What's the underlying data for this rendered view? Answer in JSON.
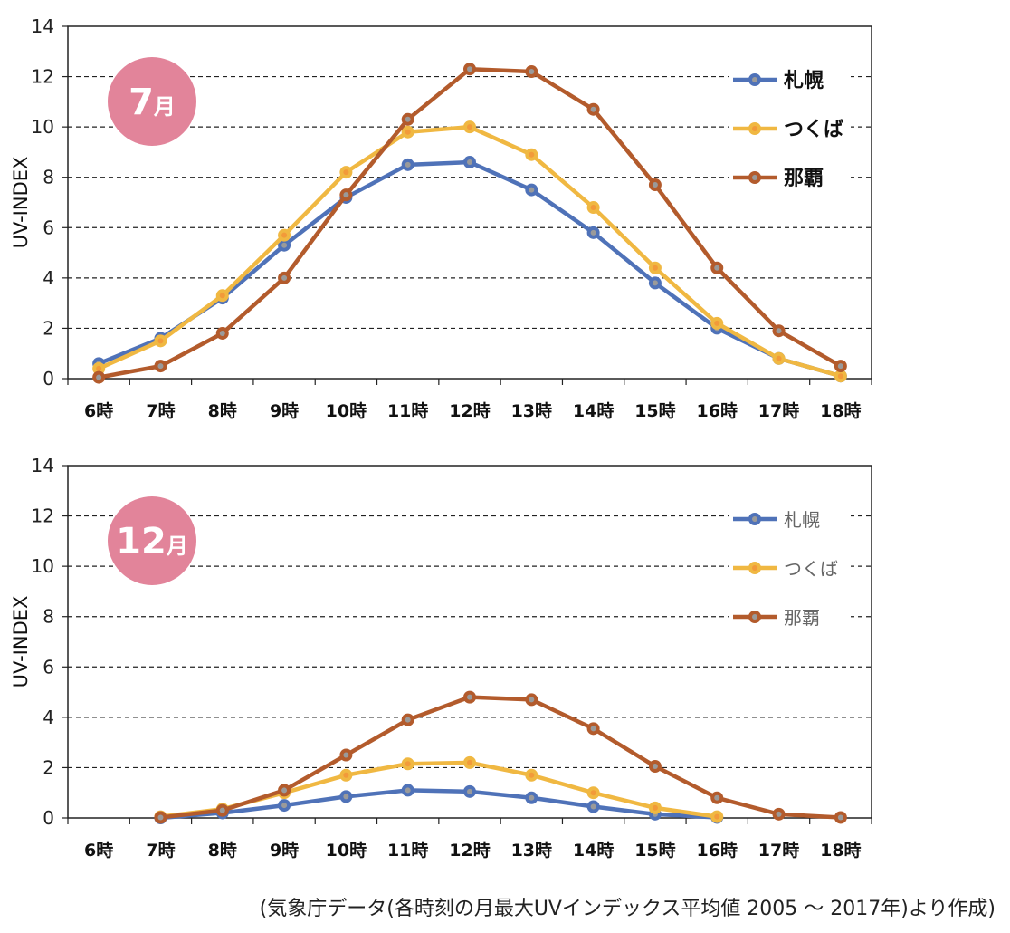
{
  "footer": {
    "source": "(気象庁データ(各時刻の月最大UVインデックス平均値 2005 ～ 2017年)より作成)"
  },
  "colors": {
    "sapporo": "#4f72b8",
    "tsukuba": "#f0b842",
    "naha": "#b35b2c",
    "badge": "#e2849a",
    "marker_center": "#9a9a9a",
    "marker_center_tsukuba": "#f29a3a"
  },
  "chart_data": [
    {
      "type": "line",
      "badge": {
        "number": "7",
        "unit": "月"
      },
      "x": [
        "6時",
        "7時",
        "8時",
        "9時",
        "10時",
        "11時",
        "12時",
        "13時",
        "14時",
        "15時",
        "16時",
        "17時",
        "18時"
      ],
      "ylabel": "UV-INDEX",
      "ylim": [
        0,
        14
      ],
      "yticks": [
        "0",
        "2",
        "4",
        "6",
        "8",
        "10",
        "12",
        "14"
      ],
      "grid": "dashed horizontal",
      "legend_position": "top-right",
      "series": [
        {
          "name": "札幌",
          "values": [
            0.6,
            1.6,
            3.2,
            5.3,
            7.2,
            8.5,
            8.6,
            7.5,
            5.8,
            3.8,
            2.0,
            0.8,
            0.1
          ]
        },
        {
          "name": "つくば",
          "values": [
            0.4,
            1.5,
            3.3,
            5.7,
            8.2,
            9.8,
            10.0,
            8.9,
            6.8,
            4.4,
            2.2,
            0.8,
            0.1
          ]
        },
        {
          "name": "那覇",
          "values": [
            0.05,
            0.5,
            1.8,
            4.0,
            7.3,
            10.3,
            12.3,
            12.2,
            10.7,
            7.7,
            4.4,
            1.9,
            0.5
          ]
        }
      ]
    },
    {
      "type": "line",
      "badge": {
        "number": "12",
        "unit": "月"
      },
      "x": [
        "6時",
        "7時",
        "8時",
        "9時",
        "10時",
        "11時",
        "12時",
        "13時",
        "14時",
        "15時",
        "16時",
        "17時",
        "18時"
      ],
      "ylabel": "UV-INDEX",
      "ylim": [
        0,
        14
      ],
      "yticks": [
        "0",
        "2",
        "4",
        "6",
        "8",
        "10",
        "12",
        "14"
      ],
      "grid": "dashed horizontal",
      "legend_position": "top-right",
      "series": [
        {
          "name": "札幌",
          "values": [
            null,
            0.0,
            0.2,
            0.5,
            0.85,
            1.1,
            1.05,
            0.8,
            0.45,
            0.15,
            0.02,
            null,
            null
          ]
        },
        {
          "name": "つくば",
          "values": [
            null,
            0.05,
            0.35,
            1.0,
            1.7,
            2.15,
            2.2,
            1.7,
            1.0,
            0.4,
            0.05,
            null,
            null
          ]
        },
        {
          "name": "那覇",
          "values": [
            null,
            0.02,
            0.3,
            1.1,
            2.5,
            3.9,
            4.8,
            4.7,
            3.55,
            2.05,
            0.8,
            0.15,
            0.02
          ]
        }
      ]
    }
  ]
}
